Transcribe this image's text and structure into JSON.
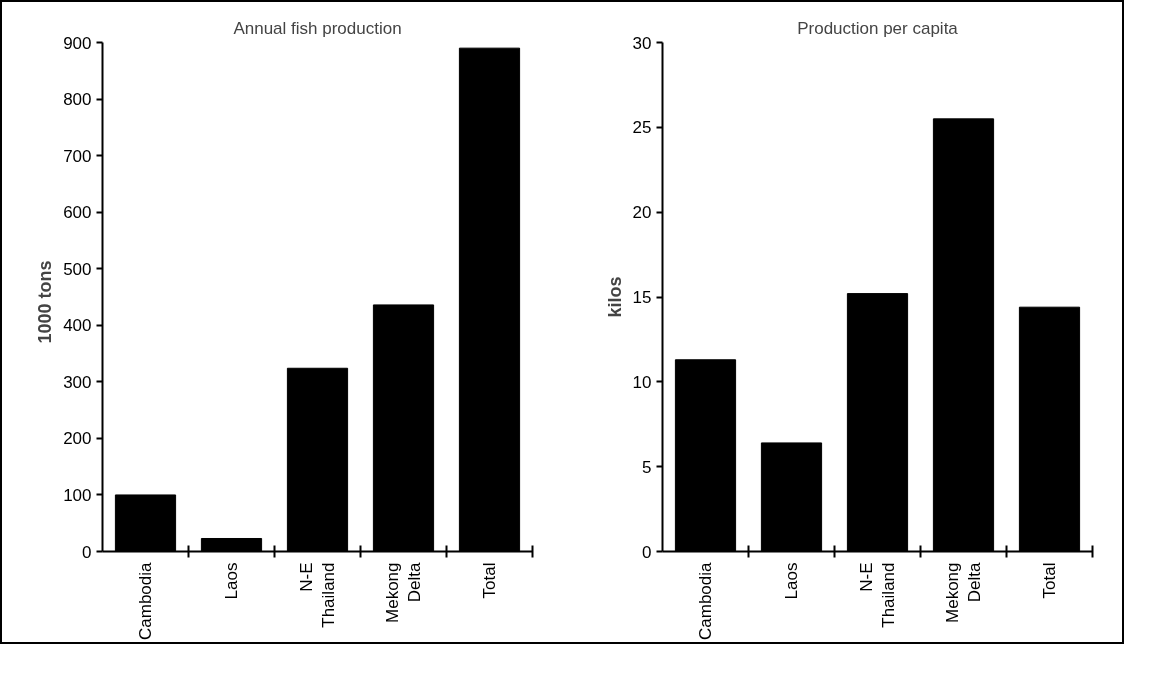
{
  "chart_data": [
    {
      "type": "bar",
      "title": "Annual fish production",
      "ylabel": "1000   tons",
      "categories": [
        "Cambodia",
        "Laos",
        "N-E Thailand",
        "Mekong Delta",
        "Total"
      ],
      "values": [
        100,
        23,
        324,
        436,
        890
      ],
      "color": "#000000",
      "ylim": [
        0,
        900
      ],
      "yticks": [
        0,
        100,
        200,
        300,
        400,
        500,
        600,
        700,
        800,
        900
      ],
      "grid": false
    },
    {
      "type": "bar",
      "title": "Production per capita",
      "ylabel": "kilos",
      "categories": [
        "Cambodia",
        "Laos",
        "N-E Thailand",
        "Mekong Delta",
        "Total"
      ],
      "values": [
        11.3,
        6.4,
        15.2,
        25.5,
        14.4
      ],
      "color": "#000000",
      "ylim": [
        0,
        30
      ],
      "yticks": [
        0,
        5,
        10,
        15,
        20,
        25,
        30
      ],
      "grid": false
    }
  ]
}
